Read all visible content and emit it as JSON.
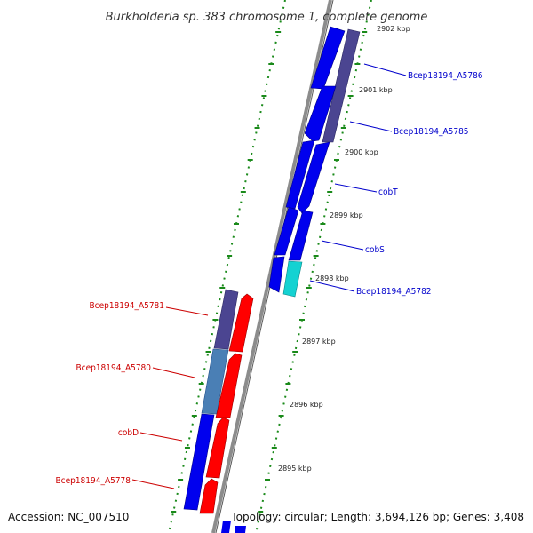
{
  "title": "Burkholderia sp. 383 chromosome 1, complete genome",
  "footer": {
    "accession": "Accession: NC_007510",
    "topology": "Topology: circular; Length: 3,694,126 bp; Genes: 3,408"
  },
  "colors": {
    "cds_blue": "#0000ee",
    "cds_red": "#ff0000",
    "cds_purple": "#4b4591",
    "cds_steel": "#4a7fb5",
    "cds_cyan": "#14d2d2",
    "backbone": "#808080",
    "tick_green": "#008000",
    "label_blue": "#0000cc",
    "label_red": "#cc0000"
  },
  "ticks": [
    {
      "label": "2902 kbp"
    },
    {
      "label": "2901 kbp"
    },
    {
      "label": "2900 kbp"
    },
    {
      "label": "2899 kbp"
    },
    {
      "label": "2898 kbp"
    },
    {
      "label": "2897 kbp"
    },
    {
      "label": "2896 kbp"
    },
    {
      "label": "2895 kbp"
    }
  ],
  "right_genes": [
    {
      "label": "Bcep18194_A5786",
      "color": "purple"
    },
    {
      "label": "Bcep18194_A5785",
      "color": "blue"
    },
    {
      "label": "cobT",
      "color": "blue"
    },
    {
      "label": "cobS",
      "color": "blue"
    },
    {
      "label": "Bcep18194_A5782",
      "color": "cyan"
    }
  ],
  "left_genes": [
    {
      "label": "Bcep18194_A5781",
      "color": "purple"
    },
    {
      "label": "Bcep18194_A5780",
      "color": "steel"
    },
    {
      "label": "cobD",
      "color": "blue"
    },
    {
      "label": "Bcep18194_A5778",
      "color": "blue"
    }
  ]
}
